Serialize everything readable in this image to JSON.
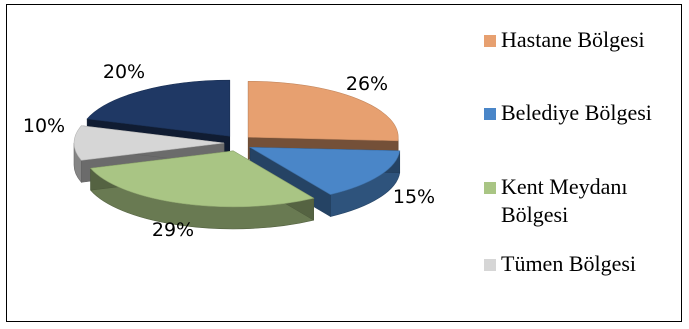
{
  "chart_data": {
    "type": "pie",
    "variant": "3d-exploded",
    "title": "",
    "series": [
      {
        "name": "",
        "slices": [
          {
            "label": "Hastane Bölgesi",
            "value": 26,
            "value_label": "26%",
            "color": "#e7a070"
          },
          {
            "label": "Belediye Bölgesi",
            "value": 15,
            "value_label": "15%",
            "color": "#4a86c8"
          },
          {
            "label": "Kent Meydanı Bölgesi",
            "value": 29,
            "value_label": "29%",
            "color": "#a9c584"
          },
          {
            "label": "Tümen Bölgesi",
            "value": 10,
            "value_label": "10%",
            "color": "#d6d6d6"
          },
          {
            "label": "",
            "value": 20,
            "value_label": "20%",
            "color": "#1f3864"
          }
        ]
      }
    ],
    "legend": {
      "position": "right",
      "items": [
        {
          "label": "Hastane Bölgesi",
          "color": "#e7a070"
        },
        {
          "label": "Belediye Bölgesi",
          "color": "#4a86c8"
        },
        {
          "label": "Kent Meydanı\nBölgesi",
          "color": "#a9c584"
        },
        {
          "label": "Tümen Bölgesi",
          "color": "#d6d6d6"
        }
      ]
    }
  }
}
